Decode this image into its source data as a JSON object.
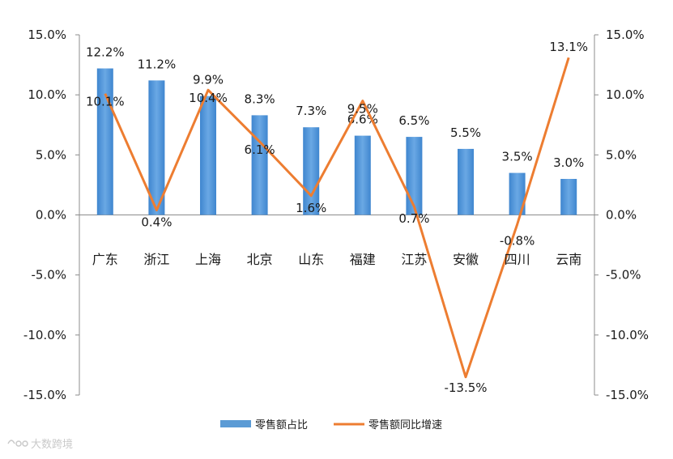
{
  "chart_data": {
    "type": "bar",
    "title": "",
    "categories": [
      "广东",
      "浙江",
      "上海",
      "北京",
      "山东",
      "福建",
      "江苏",
      "安徽",
      "四川",
      "云南"
    ],
    "series": [
      {
        "name": "零售额占比",
        "type": "bar",
        "axis": "left",
        "color": "#5b9bd5",
        "values": [
          12.2,
          11.2,
          9.9,
          8.3,
          7.3,
          6.6,
          6.5,
          5.5,
          3.5,
          3.0
        ],
        "labels": [
          "12.2%",
          "11.2%",
          "9.9%",
          "8.3%",
          "7.3%",
          "6.6%",
          "6.5%",
          "5.5%",
          "3.5%",
          "3.0%"
        ]
      },
      {
        "name": "零售额同比增速",
        "type": "line",
        "axis": "right",
        "color": "#ed7d31",
        "values": [
          10.1,
          0.4,
          10.4,
          6.1,
          1.6,
          9.5,
          0.7,
          -13.5,
          -0.8,
          13.1
        ],
        "labels": [
          "10.1%",
          "0.4%",
          "10.4%",
          "6.1%",
          "1.6%",
          "9.5%",
          "0.7%",
          "-13.5%",
          "-0.8%",
          "13.1%"
        ]
      }
    ],
    "ylim": [
      -15,
      15
    ],
    "y2lim": [
      -15,
      15
    ],
    "yticks": [
      "15.0%",
      "10.0%",
      "5.0%",
      "0.0%",
      "-5.0%",
      "-10.0%",
      "-15.0%"
    ],
    "y2ticks": [
      "15.0%",
      "10.0%",
      "5.0%",
      "0.0%",
      "-5.0%",
      "-10.0%",
      "-15.0%"
    ],
    "grid": false,
    "legend_position": "bottom"
  },
  "watermark": "大数跨境"
}
